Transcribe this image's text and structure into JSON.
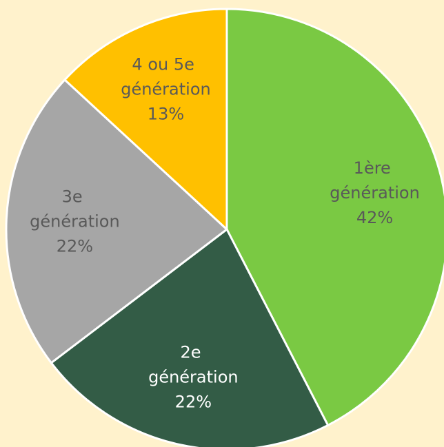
{
  "chart_data": {
    "type": "pie",
    "categories": [
      "1ère génération",
      "2e génération",
      "3e génération",
      "4 ou 5e génération"
    ],
    "values": [
      42,
      22,
      22,
      13
    ],
    "value_labels": [
      "42%",
      "22%",
      "22%",
      "13%"
    ],
    "colors": [
      "#7ac943",
      "#335c46",
      "#a6a6a6",
      "#ffc000"
    ]
  }
}
